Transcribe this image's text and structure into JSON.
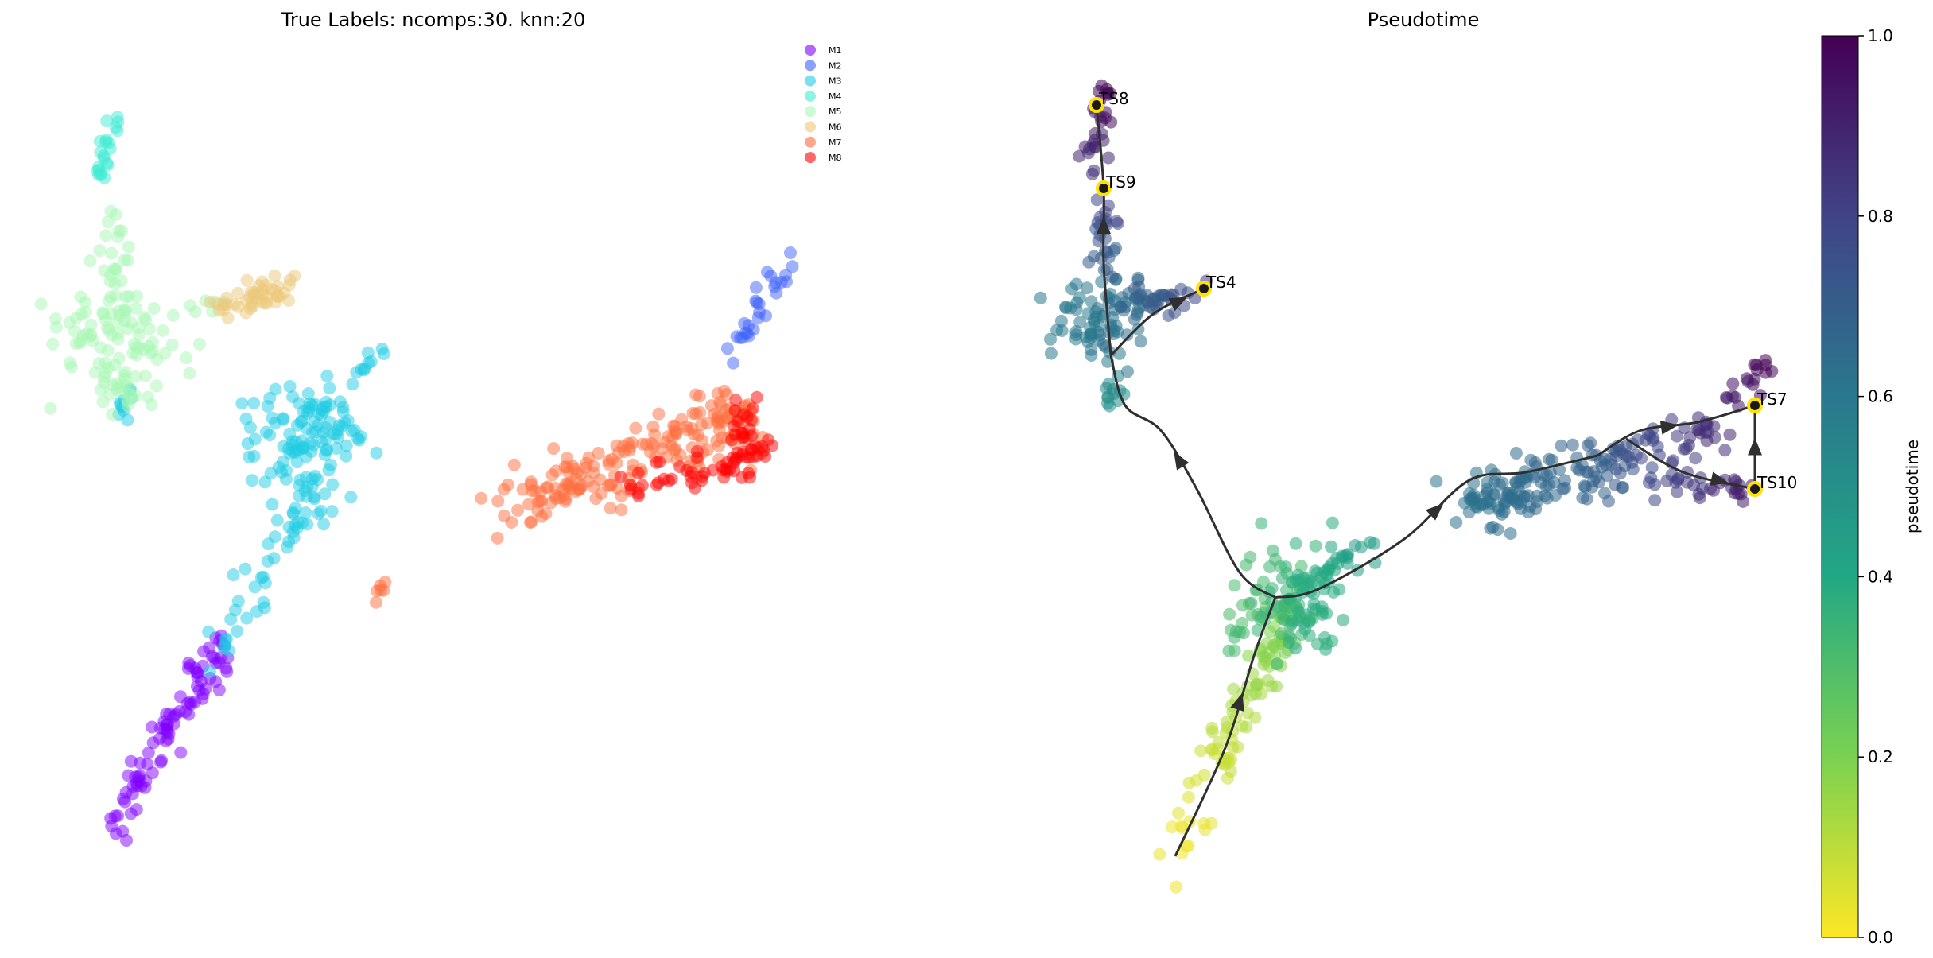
{
  "chart_data": [
    {
      "type": "scatter",
      "title": "True Labels: ncomps:30. knn:20",
      "legend_position": "top-right",
      "grid": false,
      "axes_visible": false,
      "x_range": [
        0,
        1
      ],
      "y_range": [
        0,
        1
      ],
      "series": [
        {
          "name": "M1",
          "color": "#8000ff",
          "clusters": [
            {
              "path": [
                [
                  0.08,
                  0.08
                ],
                [
                  0.13,
                  0.16
                ],
                [
                  0.19,
                  0.25
                ],
                [
                  0.23,
                  0.31
                ]
              ],
              "spread": 0.012,
              "n": 90
            }
          ]
        },
        {
          "name": "M2",
          "color": "#4062fa",
          "clusters": [
            {
              "path": [
                [
                  0.88,
                  0.66
                ],
                [
                  0.96,
                  0.77
                ]
              ],
              "spread": 0.008,
              "n": 28
            }
          ]
        },
        {
          "name": "M3",
          "color": "#1fcbe4",
          "clusters": [
            {
              "path": [
                [
                  0.23,
                  0.31
                ],
                [
                  0.3,
                  0.43
                ],
                [
                  0.36,
                  0.49
                ]
              ],
              "spread": 0.014,
              "n": 55
            },
            {
              "path": [
                [
                  0.31,
                  0.55
                ],
                [
                  0.37,
                  0.57
                ]
              ],
              "spread": 0.028,
              "n": 110
            },
            {
              "path": [
                [
                  0.39,
                  0.62
                ],
                [
                  0.44,
                  0.67
                ]
              ],
              "spread": 0.006,
              "n": 10
            },
            {
              "path": [
                [
                  0.1,
                  0.58
                ],
                [
                  0.11,
                  0.62
                ]
              ],
              "spread": 0.006,
              "n": 10
            }
          ]
        },
        {
          "name": "M4",
          "color": "#40ecd4",
          "clusters": [
            {
              "path": [
                [
                  0.07,
                  0.87
                ],
                [
                  0.09,
                  0.93
                ]
              ],
              "spread": 0.006,
              "n": 22
            }
          ]
        },
        {
          "name": "M5",
          "color": "#a8f8b4",
          "clusters": [
            {
              "path": [
                [
                  0.09,
                  0.82
                ],
                [
                  0.09,
                  0.7
                ]
              ],
              "spread": 0.012,
              "n": 30
            },
            {
              "path": [
                [
                  0.05,
                  0.68
                ],
                [
                  0.14,
                  0.66
                ]
              ],
              "spread": 0.032,
              "n": 80
            },
            {
              "path": [
                [
                  0.09,
                  0.64
                ],
                [
                  0.1,
                  0.6
                ]
              ],
              "spread": 0.01,
              "n": 18
            },
            {
              "path": [
                [
                  0.19,
                  0.71
                ],
                [
                  0.22,
                  0.72
                ]
              ],
              "spread": 0.006,
              "n": 6
            }
          ]
        },
        {
          "name": "M6",
          "color": "#ecc878",
          "clusters": [
            {
              "path": [
                [
                  0.22,
                  0.71
                ],
                [
                  0.31,
                  0.74
                ]
              ],
              "spread": 0.01,
              "n": 45
            }
          ]
        },
        {
          "name": "M7",
          "color": "#ff6d3d",
          "clusters": [
            {
              "path": [
                [
                  0.59,
                  0.47
                ],
                [
                  0.7,
                  0.51
                ],
                [
                  0.83,
                  0.56
                ],
                [
                  0.89,
                  0.58
                ]
              ],
              "spread": 0.02,
              "n": 190
            },
            {
              "path": [
                [
                  0.42,
                  0.37
                ],
                [
                  0.45,
                  0.38
                ]
              ],
              "spread": 0.006,
              "n": 6
            }
          ]
        },
        {
          "name": "M8",
          "color": "#ff0000",
          "clusters": [
            {
              "path": [
                [
                  0.74,
                  0.5
                ],
                [
                  0.88,
                  0.52
                ],
                [
                  0.92,
                  0.55
                ]
              ],
              "spread": 0.012,
              "n": 60
            },
            {
              "path": [
                [
                  0.89,
                  0.56
                ],
                [
                  0.92,
                  0.61
                ]
              ],
              "spread": 0.008,
              "n": 14
            }
          ]
        }
      ]
    },
    {
      "type": "scatter",
      "title": "Pseudotime",
      "grid": false,
      "axes_visible": false,
      "x_range": [
        0,
        1
      ],
      "y_range": [
        0,
        1
      ],
      "colorbar": {
        "label": "pseudotime",
        "range": [
          0,
          1
        ],
        "ticks": [
          "0.0",
          "0.2",
          "0.4",
          "0.6",
          "0.8",
          "1.0"
        ],
        "colormap": "viridis"
      },
      "clusters": [
        {
          "path": [
            [
              0.16,
              0.07
            ],
            [
              0.22,
              0.2
            ],
            [
              0.28,
              0.3
            ],
            [
              0.31,
              0.36
            ]
          ],
          "spread": 0.014,
          "n": 100,
          "t": [
            0.02,
            0.25
          ]
        },
        {
          "path": [
            [
              0.26,
              0.36
            ],
            [
              0.35,
              0.37
            ]
          ],
          "spread": 0.028,
          "n": 120,
          "t": [
            0.3,
            0.4
          ]
        },
        {
          "path": [
            [
              0.35,
              0.4
            ],
            [
              0.42,
              0.43
            ]
          ],
          "spread": 0.008,
          "n": 20,
          "t": [
            0.4,
            0.45
          ]
        },
        {
          "path": [
            [
              0.06,
              0.6
            ],
            [
              0.06,
              0.63
            ]
          ],
          "spread": 0.008,
          "n": 12,
          "t": [
            0.5,
            0.55
          ]
        },
        {
          "path": [
            [
              0.02,
              0.69
            ],
            [
              0.08,
              0.71
            ]
          ],
          "spread": 0.026,
          "n": 80,
          "t": [
            0.58,
            0.65
          ]
        },
        {
          "path": [
            [
              0.08,
              0.72
            ],
            [
              0.2,
              0.74
            ]
          ],
          "spread": 0.01,
          "n": 35,
          "t": [
            0.66,
            0.82
          ]
        },
        {
          "path": [
            [
              0.04,
              0.75
            ],
            [
              0.06,
              0.84
            ]
          ],
          "spread": 0.012,
          "n": 25,
          "t": [
            0.68,
            0.8
          ]
        },
        {
          "path": [
            [
              0.03,
              0.88
            ],
            [
              0.05,
              0.98
            ]
          ],
          "spread": 0.008,
          "n": 28,
          "t": [
            0.85,
            1.0
          ]
        },
        {
          "path": [
            [
              0.56,
              0.48
            ],
            [
              0.66,
              0.5
            ],
            [
              0.76,
              0.53
            ]
          ],
          "spread": 0.018,
          "n": 130,
          "t": [
            0.62,
            0.7
          ]
        },
        {
          "path": [
            [
              0.76,
              0.54
            ],
            [
              0.91,
              0.57
            ]
          ],
          "spread": 0.014,
          "n": 50,
          "t": [
            0.72,
            0.9
          ]
        },
        {
          "path": [
            [
              0.82,
              0.51
            ],
            [
              0.96,
              0.5
            ]
          ],
          "spread": 0.01,
          "n": 30,
          "t": [
            0.78,
            0.95
          ]
        },
        {
          "path": [
            [
              0.92,
              0.6
            ],
            [
              0.98,
              0.65
            ]
          ],
          "spread": 0.008,
          "n": 18,
          "t": [
            0.9,
            1.0
          ]
        }
      ],
      "trajectory_edges": [
        [
          [
            0.15,
            0.06
          ],
          [
            0.22,
            0.19
          ],
          [
            0.26,
            0.3
          ],
          [
            0.29,
            0.37
          ]
        ],
        [
          [
            0.29,
            0.37
          ],
          [
            0.24,
            0.4
          ],
          [
            0.18,
            0.5
          ],
          [
            0.13,
            0.57
          ],
          [
            0.08,
            0.6
          ],
          [
            0.06,
            0.66
          ]
        ],
        [
          [
            0.29,
            0.37
          ],
          [
            0.35,
            0.38
          ],
          [
            0.47,
            0.44
          ],
          [
            0.56,
            0.51
          ],
          [
            0.64,
            0.52
          ],
          [
            0.74,
            0.54
          ]
        ],
        [
          [
            0.06,
            0.66
          ],
          [
            0.12,
            0.71
          ],
          [
            0.19,
            0.74
          ]
        ],
        [
          [
            0.06,
            0.66
          ],
          [
            0.05,
            0.77
          ],
          [
            0.05,
            0.86
          ],
          [
            0.04,
            0.96
          ]
        ],
        [
          [
            0.74,
            0.54
          ],
          [
            0.8,
            0.57
          ],
          [
            0.88,
            0.58
          ],
          [
            0.96,
            0.6
          ]
        ],
        [
          [
            0.78,
            0.56
          ],
          [
            0.86,
            0.52
          ],
          [
            0.96,
            0.5
          ]
        ],
        [
          [
            0.96,
            0.5
          ],
          [
            0.96,
            0.6
          ]
        ]
      ],
      "terminal_states": [
        {
          "label": "TS8",
          "x": 0.04,
          "y": 0.96
        },
        {
          "label": "TS9",
          "x": 0.05,
          "y": 0.86
        },
        {
          "label": "TS4",
          "x": 0.19,
          "y": 0.74
        },
        {
          "label": "TS7",
          "x": 0.96,
          "y": 0.6
        },
        {
          "label": "TS10",
          "x": 0.96,
          "y": 0.5
        }
      ]
    }
  ]
}
